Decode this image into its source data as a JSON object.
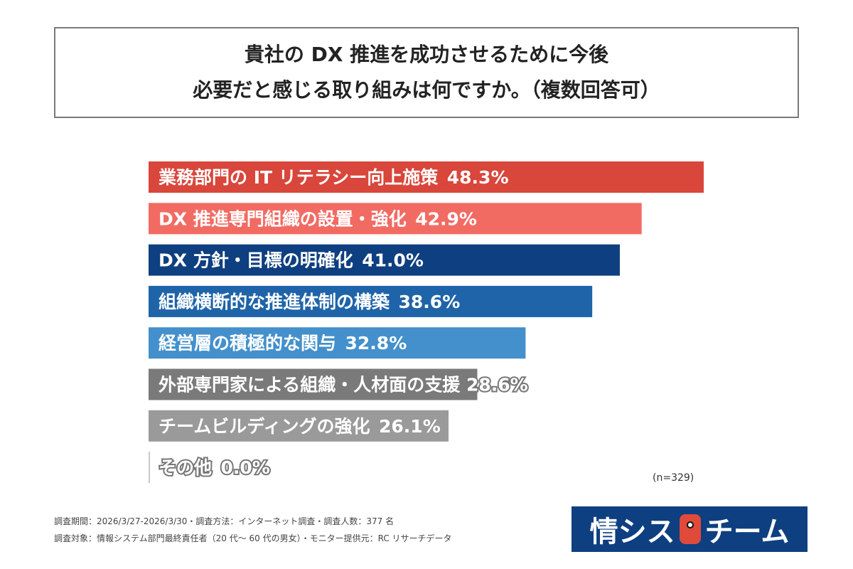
{
  "chart_data": {
    "type": "bar",
    "orientation": "horizontal",
    "title": "貴社の DX 推進を成功させるために今後\n必要だと感じる取り組みは何ですか。（複数回答可）",
    "title_lines": [
      "貴社の DX 推進を成功させるために今後",
      "必要だと感じる取り組みは何ですか。（複数回答可）"
    ],
    "categories": [
      "業務部門の IT リテラシー向上施策",
      "DX 推進専門組織の設置・強化",
      "DX 方針・目標の明確化",
      "組織横断的な推進体制の構築",
      "経営層の積極的な関与",
      "外部専門家による組織・人材面の支援",
      "チームビルディングの強化",
      "その他"
    ],
    "values": [
      48.3,
      42.9,
      41.0,
      38.6,
      32.8,
      28.6,
      26.1,
      0.0
    ],
    "value_labels": [
      "48.3%",
      "42.9%",
      "41.0%",
      "38.6%",
      "32.8%",
      "28.6%",
      "26.1%",
      "0.0%"
    ],
    "colors": [
      "#d9463b",
      "#f26b63",
      "#0e3f80",
      "#1f64a8",
      "#4390cc",
      "#7a7a7a",
      "#9a9a9a",
      "#c8c8c8"
    ],
    "grid": false,
    "sample_size": "(n=329)"
  },
  "footer": {
    "line1": "調査期間：2026/3/27-2026/3/30・調査方法：インターネット調査・調査人数：377 名",
    "line2": "調査対象：情報システム部門最終責任者（20 代～ 60 代の男女）・モニター提供元：RC リサーチデータ"
  },
  "logo": {
    "text_left": "情シス",
    "text_right": "チーム"
  }
}
